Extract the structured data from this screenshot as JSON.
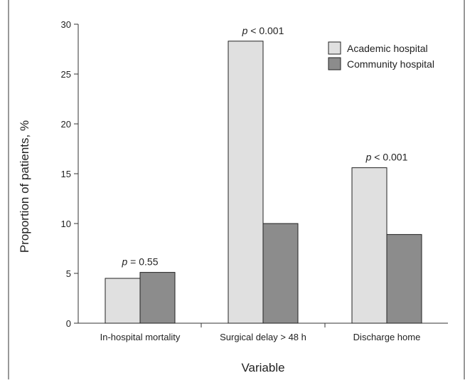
{
  "chart_data": {
    "type": "bar",
    "xlabel": "Variable",
    "ylabel": "Proportion of patients, %",
    "ylim": [
      0,
      30
    ],
    "yticks": [
      0,
      5,
      10,
      15,
      20,
      25,
      30
    ],
    "grid": false,
    "legend_position": "top-right",
    "categories": [
      "In-hospital mortality",
      "Surgical delay > 48 h",
      "Discharge home"
    ],
    "series": [
      {
        "name": "Academic hospital",
        "values": [
          4.5,
          28.3,
          15.6
        ],
        "color": "#e0e0e0"
      },
      {
        "name": "Community hospital",
        "values": [
          5.1,
          10.0,
          8.9
        ],
        "color": "#8c8c8c"
      }
    ],
    "annotations": [
      {
        "category": "In-hospital mortality",
        "p_symbol": "p",
        "text": " = 0.55"
      },
      {
        "category": "Surgical delay > 48 h",
        "p_symbol": "p",
        "text": " < 0.001"
      },
      {
        "category": "Discharge home",
        "p_symbol": "p",
        "text": " < 0.001"
      }
    ],
    "colors": {
      "axis": "#333333",
      "bar_stroke": "#222222",
      "border": "#333333"
    }
  }
}
